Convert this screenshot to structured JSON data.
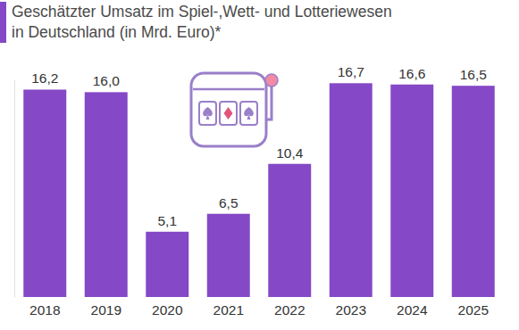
{
  "chart_data": {
    "type": "bar",
    "title": "Geschätzter Umsatz im Spiel-,Wett- und Lotteriewesen",
    "subtitle": "in Deutschland (in Mrd. Euro)*",
    "categories": [
      "2018",
      "2019",
      "2020",
      "2021",
      "2022",
      "2023",
      "2024",
      "2025"
    ],
    "values": [
      16.2,
      16.0,
      5.1,
      6.5,
      10.4,
      16.7,
      16.6,
      16.5
    ],
    "value_labels": [
      "16,2",
      "16,0",
      "5,1",
      "6,5",
      "10,4",
      "16,7",
      "16,6",
      "16,5"
    ],
    "color": "#8548c6",
    "ylim": [
      0,
      17
    ],
    "yticks": [],
    "data_labels": true,
    "tick_labels": "x",
    "grid": false
  }
}
